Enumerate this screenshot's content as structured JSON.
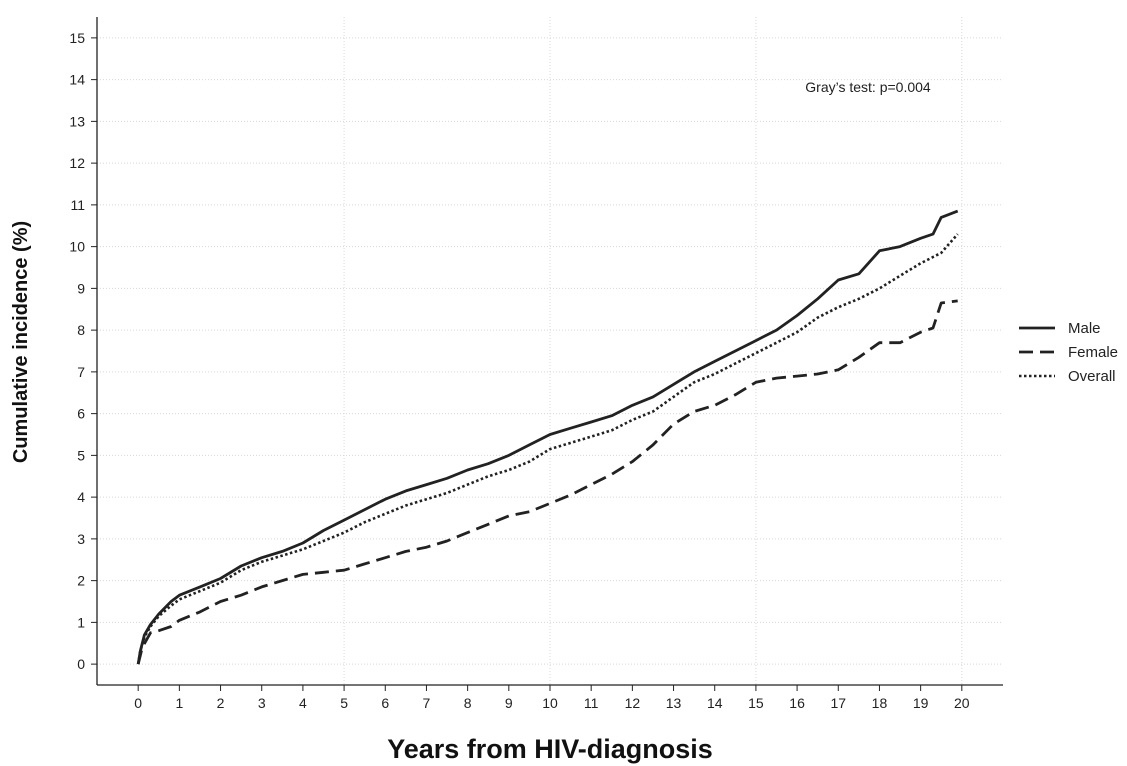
{
  "chart_data": {
    "type": "line",
    "title": "",
    "xlabel": "Years from HIV-diagnosis",
    "ylabel": "Cumulative incidence (%)",
    "annotation": "Gray’s test: p=0.004",
    "xlim": [
      -1,
      21
    ],
    "ylim": [
      -0.5,
      15.5
    ],
    "x_ticks": [
      0,
      1,
      2,
      3,
      4,
      5,
      6,
      7,
      8,
      9,
      10,
      11,
      12,
      13,
      14,
      15,
      16,
      17,
      18,
      19,
      20
    ],
    "y_ticks": [
      0,
      1,
      2,
      3,
      4,
      5,
      6,
      7,
      8,
      9,
      10,
      11,
      12,
      13,
      14,
      15
    ],
    "grid": true,
    "legend_position": "right",
    "legend": [
      "Male",
      "Female",
      "Overall"
    ],
    "series": [
      {
        "name": "Male",
        "style": "solid",
        "x": [
          0,
          0.05,
          0.15,
          0.3,
          0.5,
          0.8,
          1,
          1.5,
          2,
          2.5,
          3,
          3.5,
          4,
          4.5,
          5,
          5.5,
          6,
          6.5,
          7,
          7.5,
          8,
          8.5,
          9,
          9.5,
          10,
          10.5,
          11,
          11.5,
          12,
          12.5,
          13,
          13.5,
          14,
          14.5,
          15,
          15.5,
          16,
          16.5,
          17,
          17.5,
          18,
          18.5,
          19,
          19.3,
          19.5,
          19.9
        ],
        "y": [
          0,
          0.3,
          0.7,
          0.95,
          1.2,
          1.5,
          1.65,
          1.85,
          2.05,
          2.35,
          2.55,
          2.7,
          2.9,
          3.2,
          3.45,
          3.7,
          3.95,
          4.15,
          4.3,
          4.45,
          4.65,
          4.8,
          5.0,
          5.25,
          5.5,
          5.65,
          5.8,
          5.95,
          6.2,
          6.4,
          6.7,
          7.0,
          7.25,
          7.5,
          7.75,
          8.0,
          8.35,
          8.75,
          9.2,
          9.35,
          9.9,
          10.0,
          10.2,
          10.3,
          10.7,
          10.85
        ]
      },
      {
        "name": "Female",
        "style": "dashed",
        "x": [
          0,
          0.1,
          0.3,
          0.5,
          0.8,
          1,
          1.5,
          2,
          2.5,
          3,
          3.5,
          4,
          4.5,
          5,
          5.5,
          6,
          6.5,
          7,
          7.5,
          8,
          8.5,
          9,
          9.5,
          10,
          10.5,
          11,
          11.5,
          12,
          12.5,
          13,
          13.5,
          14,
          14.5,
          15,
          15.5,
          16,
          16.5,
          17,
          17.5,
          18,
          18.5,
          19,
          19.3,
          19.5,
          19.9
        ],
        "y": [
          0,
          0.4,
          0.75,
          0.8,
          0.9,
          1.05,
          1.25,
          1.5,
          1.65,
          1.85,
          2.0,
          2.15,
          2.2,
          2.25,
          2.4,
          2.55,
          2.7,
          2.8,
          2.95,
          3.15,
          3.35,
          3.55,
          3.65,
          3.85,
          4.05,
          4.3,
          4.55,
          4.85,
          5.25,
          5.75,
          6.05,
          6.2,
          6.45,
          6.75,
          6.85,
          6.9,
          6.95,
          7.05,
          7.35,
          7.7,
          7.7,
          7.95,
          8.05,
          8.65,
          8.7
        ]
      },
      {
        "name": "Overall",
        "style": "dotted",
        "x": [
          0,
          0.05,
          0.15,
          0.3,
          0.5,
          0.8,
          1,
          1.5,
          2,
          2.5,
          3,
          3.5,
          4,
          4.5,
          5,
          5.5,
          6,
          6.5,
          7,
          7.5,
          8,
          8.5,
          9,
          9.5,
          10,
          10.5,
          11,
          11.5,
          12,
          12.5,
          13,
          13.5,
          14,
          14.5,
          15,
          15.5,
          16,
          16.5,
          17,
          17.5,
          18,
          18.5,
          19,
          19.5,
          19.9
        ],
        "y": [
          0,
          0.3,
          0.65,
          0.9,
          1.15,
          1.4,
          1.55,
          1.75,
          1.95,
          2.25,
          2.45,
          2.6,
          2.75,
          2.95,
          3.15,
          3.4,
          3.6,
          3.8,
          3.95,
          4.1,
          4.3,
          4.5,
          4.65,
          4.85,
          5.15,
          5.3,
          5.45,
          5.6,
          5.85,
          6.05,
          6.4,
          6.75,
          6.95,
          7.2,
          7.45,
          7.7,
          7.95,
          8.3,
          8.55,
          8.75,
          9.0,
          9.3,
          9.6,
          9.85,
          10.3
        ]
      }
    ]
  }
}
